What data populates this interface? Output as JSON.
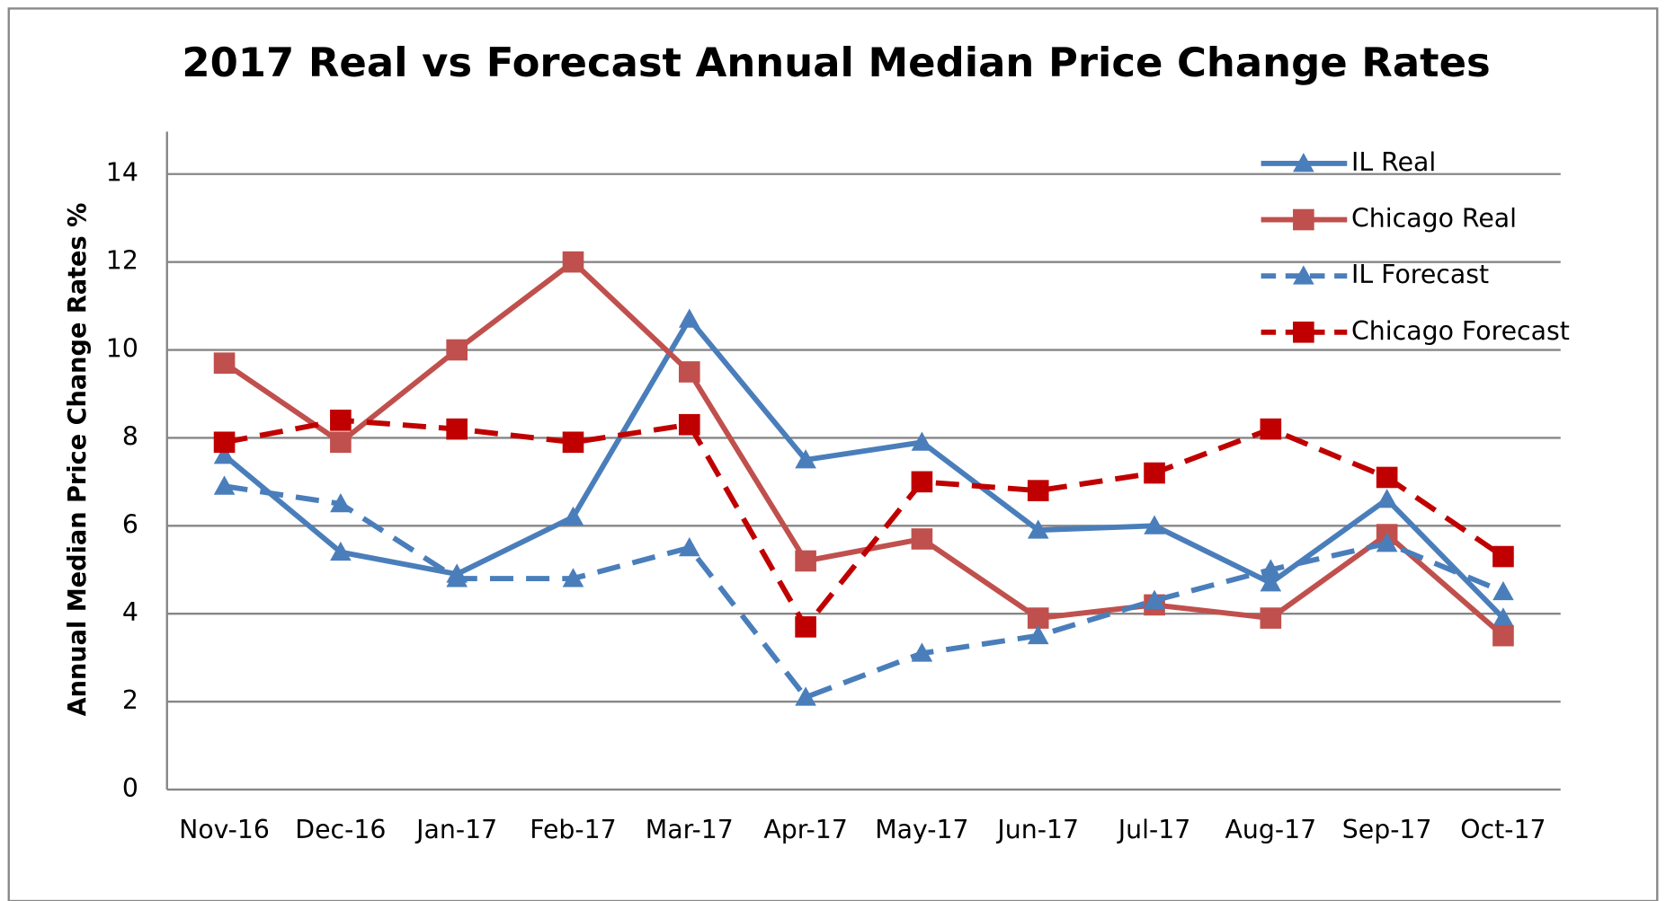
{
  "chart_data": {
    "type": "line",
    "title": "2017 Real vs Forecast Annual Median Price Change Rates",
    "y_label": "Annual Median Price Change Rates %",
    "categories": [
      "Nov-16",
      "Dec-16",
      "Jan-17",
      "Feb-17",
      "Mar-17",
      "Apr-17",
      "May-17",
      "Jun-17",
      "Jul-17",
      "Aug-17",
      "Sep-17",
      "Oct-17"
    ],
    "series": [
      {
        "name": "IL Real",
        "color": "#4a7ebb",
        "marker": "triangle",
        "dashed": false,
        "values": [
          7.6,
          5.4,
          4.9,
          6.2,
          10.7,
          7.5,
          7.9,
          5.9,
          6.0,
          4.7,
          6.6,
          3.9
        ]
      },
      {
        "name": "Chicago Real",
        "color": "#c0504d",
        "marker": "square",
        "dashed": false,
        "values": [
          9.7,
          7.9,
          10.0,
          12.0,
          9.5,
          5.2,
          5.7,
          3.9,
          4.2,
          3.9,
          5.8,
          3.5
        ]
      },
      {
        "name": "IL Forecast",
        "color": "#4a7ebb",
        "marker": "triangle",
        "dashed": true,
        "values": [
          6.9,
          6.5,
          4.8,
          4.8,
          5.5,
          2.1,
          3.1,
          3.5,
          4.3,
          5.0,
          5.6,
          4.5
        ]
      },
      {
        "name": "Chicago Forecast",
        "color": "#c00000",
        "marker": "square",
        "dashed": true,
        "values": [
          7.9,
          8.4,
          8.2,
          7.9,
          8.3,
          3.7,
          7.0,
          6.8,
          7.2,
          8.2,
          7.1,
          5.3
        ]
      }
    ],
    "ylim": [
      0,
      14
    ],
    "yticks": [
      0,
      2,
      4,
      6,
      8,
      10,
      12,
      14
    ],
    "grid": true,
    "legend": "top-right"
  }
}
